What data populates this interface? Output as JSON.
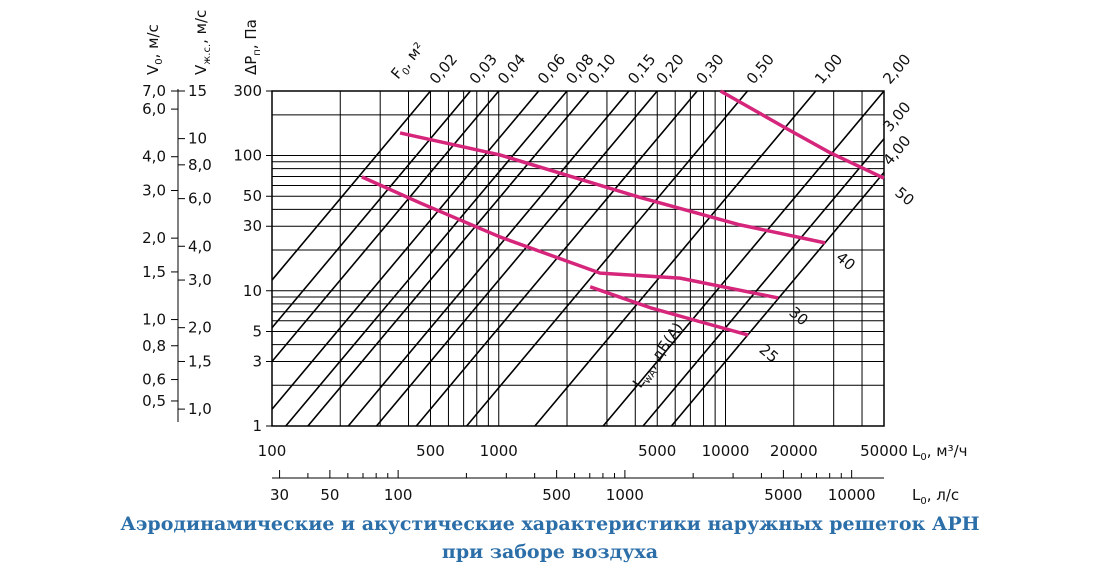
{
  "chart_data": {
    "type": "line",
    "title": "Аэродинамические и акустические характеристики наружных решеток АРН",
    "title_continued": "при заборе воздуха",
    "xlog": true,
    "ylog": true,
    "grid": true,
    "xlim": [
      100,
      50000
    ],
    "ylim": [
      1,
      300
    ],
    "xticks": [
      100,
      500,
      1000,
      5000,
      10000,
      20000,
      50000
    ],
    "yticks": [
      1,
      3,
      5,
      10,
      30,
      50,
      100,
      300
    ],
    "x_minor_grid": [
      200,
      300,
      400,
      600,
      700,
      800,
      900,
      2000,
      3000,
      4000,
      6000,
      7000,
      8000,
      9000,
      30000,
      40000
    ],
    "y_minor_grid": [
      2,
      4,
      6,
      7,
      8,
      9,
      20,
      40,
      60,
      70,
      80,
      90,
      200
    ],
    "x_label": {
      "main": "L",
      "sub": "0",
      "rest": ", м³/ч"
    },
    "y_label": {
      "main": "ΔP",
      "sub": "п",
      "rest": ", Па"
    },
    "x2": {
      "label": {
        "main": "L",
        "sub": "0",
        "rest": ", л/с"
      },
      "xlim": [
        27.78,
        13889
      ],
      "xticks": [
        30,
        50,
        100,
        500,
        1000,
        5000,
        10000
      ],
      "minor_ticks": [
        40,
        60,
        70,
        80,
        90,
        200,
        300,
        400,
        600,
        700,
        800,
        900,
        2000,
        3000,
        4000,
        6000,
        7000,
        8000,
        9000
      ]
    },
    "y_left": [
      {
        "label": {
          "main": "V",
          "sub": "0",
          "rest": ", м/с"
        },
        "ylim": [
          0.404,
          7.0
        ],
        "yticks": [
          {
            "value": 7,
            "label": "7,0"
          },
          {
            "value": 6,
            "label": "6,0"
          },
          {
            "value": 4,
            "label": "4,0"
          },
          {
            "value": 3,
            "label": "3,0"
          },
          {
            "value": 2,
            "label": "2,0"
          },
          {
            "value": 1.5,
            "label": "1,5"
          },
          {
            "value": 1,
            "label": "1,0"
          },
          {
            "value": 0.8,
            "label": "0,8"
          },
          {
            "value": 0.6,
            "label": "0,6"
          },
          {
            "value": 0.5,
            "label": "0,5"
          }
        ]
      },
      {
        "label": {
          "main": "V",
          "sub": "ж.с.",
          "rest": ", м/с"
        },
        "ylim": [
          0.866,
          15
        ],
        "yticks": [
          15,
          10,
          {
            "value": 8,
            "label": "8,0"
          },
          {
            "value": 6,
            "label": "6,0"
          },
          {
            "value": 4,
            "label": "4,0"
          },
          {
            "value": 3,
            "label": "3,0"
          },
          {
            "value": 2,
            "label": "2,0"
          },
          {
            "value": 1.5,
            "label": "1,5"
          },
          {
            "value": 1,
            "label": "1,0"
          }
        ]
      }
    ],
    "f_lines": {
      "label": {
        "main": "F",
        "sub": "0",
        "rest": ", м²"
      },
      "color": "#000000",
      "series": [
        {
          "name": "0,02",
          "x": [
            100,
            500
          ],
          "values": [
            12,
            300
          ]
        },
        {
          "name": "0,03",
          "x": [
            100,
            750
          ],
          "values": [
            5.33,
            300
          ]
        },
        {
          "name": "0,04",
          "x": [
            100,
            1000
          ],
          "values": [
            3,
            300
          ]
        },
        {
          "name": "0,06",
          "x": [
            100,
            1500
          ],
          "values": [
            1.33,
            300
          ]
        },
        {
          "name": "0,08",
          "x": [
            115,
            2000
          ],
          "values": [
            1,
            300
          ]
        },
        {
          "name": "0,10",
          "x": [
            144,
            2500
          ],
          "values": [
            1,
            300
          ]
        },
        {
          "name": "0,15",
          "x": [
            217,
            3750
          ],
          "values": [
            1,
            300
          ]
        },
        {
          "name": "0,20",
          "x": [
            289,
            5000
          ],
          "values": [
            1,
            300
          ]
        },
        {
          "name": "0,30",
          "x": [
            433,
            7500
          ],
          "values": [
            1,
            300
          ]
        },
        {
          "name": "0,50",
          "x": [
            722,
            12500
          ],
          "values": [
            1,
            300
          ]
        },
        {
          "name": "1,00",
          "x": [
            1443,
            25000
          ],
          "values": [
            1,
            300
          ]
        },
        {
          "name": "2,00",
          "x": [
            2887,
            50000
          ],
          "values": [
            1,
            300
          ]
        },
        {
          "name": "3,00",
          "x": [
            4330,
            50000
          ],
          "values": [
            1,
            133
          ]
        },
        {
          "name": "4,00",
          "x": [
            5774,
            50000
          ],
          "values": [
            1,
            75
          ]
        }
      ]
    },
    "series_label": {
      "main": "L",
      "sub": "wA",
      "rest": ", дБ(А)"
    },
    "series": [
      {
        "name": "50",
        "color": "#d6267b",
        "x": [
          9500,
          19000,
          28900,
          50000
        ],
        "values": [
          300,
          155,
          105,
          68
        ]
      },
      {
        "name": "40",
        "color": "#d6267b",
        "x": [
          367,
          1013,
          4200,
          11600,
          27500
        ],
        "values": [
          147,
          101,
          49,
          30.7,
          22.6
        ]
      },
      {
        "name": "30",
        "color": "#d6267b",
        "x": [
          249,
          450,
          1013,
          2800,
          6300,
          17060
        ],
        "values": [
          69.5,
          44.6,
          25,
          13.5,
          12.4,
          8.85
        ]
      },
      {
        "name": "25",
        "color": "#d6267b",
        "x": [
          2530,
          4650,
          7730,
          12600
        ],
        "values": [
          10.7,
          7.5,
          5.9,
          4.7
        ]
      }
    ]
  }
}
